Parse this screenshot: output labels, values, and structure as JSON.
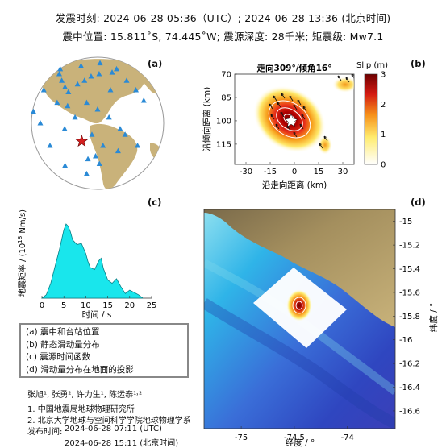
{
  "header": {
    "line1": "发震时刻: 2024-06-28 05:36（UTC）;   2024-06-28  13:36 (北京时间)",
    "line2": "震中位置: 15.811˚S,  74.445˚W;   震源深度: 28千米; 矩震级: Mw7.1"
  },
  "panels": {
    "a": "(a)",
    "b": "(b)",
    "c": "(c)",
    "d": "(d)"
  },
  "chart_data": [
    {
      "type": "scatter",
      "panel": "a",
      "description_none": "",
      "stations": [
        [
          -120,
          48
        ],
        [
          -105,
          40
        ],
        [
          -96,
          33
        ],
        [
          -90,
          28
        ],
        [
          -82,
          36
        ],
        [
          -75,
          40
        ],
        [
          -68,
          45
        ],
        [
          -58,
          48
        ],
        [
          -47,
          30
        ],
        [
          -40,
          50
        ],
        [
          -30,
          55
        ],
        [
          -25,
          40
        ],
        [
          -18,
          30
        ],
        [
          -12,
          20
        ],
        [
          -100,
          18
        ],
        [
          -88,
          15
        ],
        [
          -70,
          18
        ],
        [
          -60,
          12
        ],
        [
          -80,
          5
        ],
        [
          -50,
          5
        ],
        [
          -40,
          -5
        ],
        [
          -35,
          -10
        ],
        [
          -65,
          -10
        ],
        [
          -55,
          -20
        ],
        [
          -62,
          -30
        ],
        [
          -70,
          -33
        ],
        [
          -58,
          -38
        ],
        [
          -40,
          -25
        ],
        [
          -90,
          -5
        ],
        [
          -120,
          0
        ],
        [
          -110,
          -20
        ],
        [
          -140,
          10
        ],
        [
          -150,
          -15
        ],
        [
          -130,
          30
        ],
        [
          -20,
          -20
        ],
        [
          -100,
          -40
        ],
        [
          -75,
          -50
        ],
        [
          -150,
          40
        ],
        [
          -160,
          20
        ],
        [
          -55,
          65
        ],
        [
          -90,
          60
        ],
        [
          -140,
          55
        ]
      ],
      "epicenter": [
        -74.445,
        -15.811
      ]
    },
    {
      "type": "heatmap",
      "panel": "b",
      "title": "走向309°/倾角16°",
      "title_parts": {
        "pre": "走向",
        "strike": "309",
        "mid": "°/倾角",
        "dip": "16",
        "post": "°"
      },
      "xlabel": "沿走向距离 (km)",
      "ylabel": "沿倾向距离 (km)",
      "xticks": [
        "-30",
        "-15",
        "0",
        "15",
        "30"
      ],
      "yticks": [
        "70",
        "85",
        "100",
        "115"
      ],
      "xlim": [
        -37,
        37
      ],
      "ylim": [
        128,
        70
      ],
      "colorbar_label": "Slip (m)",
      "colorbar_ticks": [
        "0",
        "1",
        "2",
        "3"
      ],
      "slip_max": 3,
      "patches": [
        {
          "x": 0,
          "y": 98,
          "slip": 3.0
        },
        {
          "x": 23,
          "y": 73,
          "slip": 1.2
        },
        {
          "x": 17,
          "y": 115,
          "slip": 0.8
        }
      ]
    },
    {
      "type": "area",
      "panel": "c",
      "xlabel": "时间 / s",
      "ylabel": "地震矩率 / (10^18 Nm/s)",
      "ylabel_parts": {
        "pre": "地震矩率 / (10",
        "sup": "18",
        "post": " Nm/s)"
      },
      "xticks": [
        "0",
        "5",
        "10",
        "15",
        "20",
        "25"
      ],
      "xlim": [
        0,
        25
      ],
      "x": [
        0,
        1,
        2,
        3,
        4,
        5,
        5.5,
        6,
        6.5,
        7,
        8,
        9,
        10,
        10.5,
        11,
        12,
        13,
        13.5,
        14,
        15,
        16,
        17,
        18,
        19,
        20,
        21,
        22,
        23
      ],
      "y": [
        0,
        0.3,
        1.3,
        2.8,
        4.3,
        6.0,
        6.5,
        6.3,
        5.8,
        5.1,
        4.7,
        4.8,
        3.9,
        3.2,
        2.7,
        2.5,
        3.3,
        3.5,
        2.6,
        1.6,
        1.3,
        1.7,
        1.0,
        0.4,
        0.7,
        0.5,
        0.3,
        0
      ]
    },
    {
      "type": "heatmap",
      "panel": "d",
      "xlabel": "经度 / °",
      "ylabel": "纬度 / °",
      "xticks": [
        "-75",
        "-74.5",
        "-74"
      ],
      "yticks": [
        "-15",
        "-15.2",
        "-15.4",
        "-15.6",
        "-15.8",
        "-16",
        "-16.2",
        "-16.4",
        "-16.6"
      ],
      "xlim": [
        -75.35,
        -73.55
      ],
      "ylim": [
        -16.75,
        -14.9
      ]
    }
  ],
  "legend": {
    "items": [
      "(a) 震中和台站位置",
      "(b) 静态滑动量分布",
      "(c) 震源时间函数",
      "(d) 滑动量分布在地面的投影"
    ]
  },
  "credits": {
    "authors": "张旭¹, 张勇², 许力生¹, 陈运泰¹˒²",
    "aff1": "1. 中国地震局地球物理研究所",
    "aff2": "2. 北京大学地球与空间科学学院地球物理学系",
    "pub_label": "发布时间:",
    "pub_utc": "2024-06-28  07:11 (UTC)",
    "pub_bj": "2024-06-28  15:11 (北京时间)"
  },
  "colors": {
    "ocean": "#ffffff",
    "land": "#c9b27a",
    "station": "#2a8ad6",
    "epicenter": "#d42020",
    "stf_fill": "#19e6ec",
    "slip_high": "#7a0000",
    "slip_low": "#ffffff"
  }
}
